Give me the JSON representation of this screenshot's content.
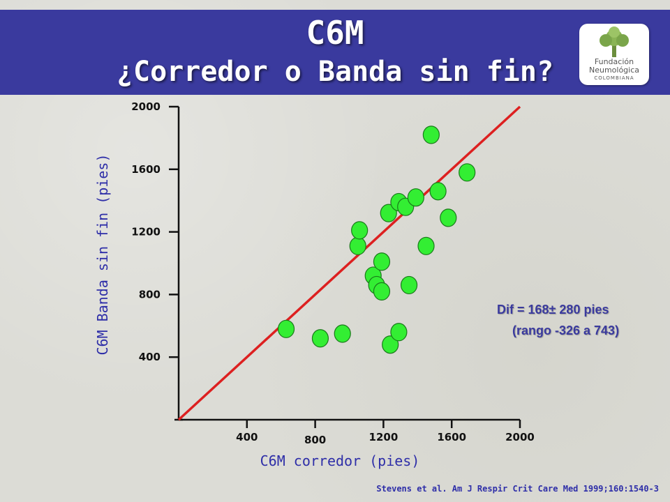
{
  "slide": {
    "title": "C6M",
    "subtitle": "¿Corredor o Banda sin fin?",
    "logo": {
      "line1": "Fundación",
      "line2": "Neumológica",
      "line3": "COLOMBIANA"
    },
    "citation": "Stevens et al. Am J Respir Crit Care Med 1999;160:1540-3",
    "annotation": {
      "line1": "Dif = 168± 280 pies",
      "line2": "(rango -326 a 743)"
    },
    "colors": {
      "header": "#3a3a9e",
      "points": "#33ee33",
      "identity_line": "#dd2020",
      "axis_text": "#2e2ea8"
    }
  },
  "chart_data": {
    "type": "scatter",
    "xlabel": "C6M corredor (pies)",
    "ylabel": "C6M Banda sin fin (pies)",
    "xlim": [
      0,
      2000
    ],
    "ylim": [
      0,
      2000
    ],
    "x_ticks": [
      "400",
      "800",
      "1200",
      "1600",
      "2000"
    ],
    "y_ticks": [
      "400",
      "800",
      "1200",
      "1600",
      "2000"
    ],
    "identity_line": true,
    "points": [
      {
        "x": 630,
        "y": 580
      },
      {
        "x": 830,
        "y": 520
      },
      {
        "x": 960,
        "y": 550
      },
      {
        "x": 1050,
        "y": 1110
      },
      {
        "x": 1060,
        "y": 1210
      },
      {
        "x": 1140,
        "y": 920
      },
      {
        "x": 1160,
        "y": 860
      },
      {
        "x": 1190,
        "y": 820
      },
      {
        "x": 1190,
        "y": 1010
      },
      {
        "x": 1230,
        "y": 1320
      },
      {
        "x": 1240,
        "y": 480
      },
      {
        "x": 1290,
        "y": 1390
      },
      {
        "x": 1290,
        "y": 560
      },
      {
        "x": 1330,
        "y": 1360
      },
      {
        "x": 1350,
        "y": 860
      },
      {
        "x": 1390,
        "y": 1420
      },
      {
        "x": 1450,
        "y": 1110
      },
      {
        "x": 1480,
        "y": 1820
      },
      {
        "x": 1520,
        "y": 1460
      },
      {
        "x": 1580,
        "y": 1290
      },
      {
        "x": 1690,
        "y": 1580
      }
    ]
  }
}
